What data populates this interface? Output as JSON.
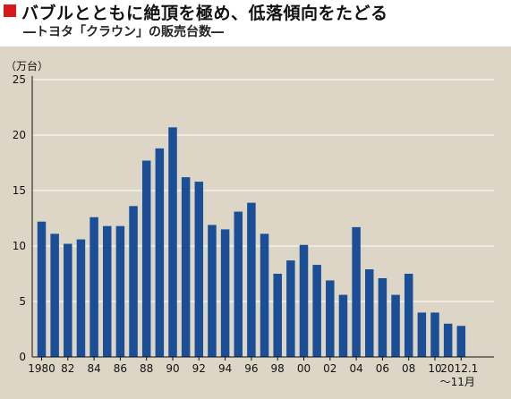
{
  "header": {
    "title": "バブルとともに絶頂を極め、低落傾向をたどる",
    "subtitle": "―トヨタ「クラウン」の販売台数―"
  },
  "chart_data": {
    "type": "bar",
    "unit_label": "（万台）",
    "bar_color": "#1a4e96",
    "categories": [
      "1980",
      "1981",
      "1982",
      "1983",
      "1984",
      "1985",
      "1986",
      "1987",
      "1988",
      "1989",
      "1990",
      "1991",
      "1992",
      "1993",
      "1994",
      "1995",
      "1996",
      "1997",
      "1998",
      "1999",
      "2000",
      "2001",
      "2002",
      "2003",
      "2004",
      "2005",
      "2006",
      "2007",
      "2008",
      "2009",
      "2010",
      "2011",
      "2012.1～11月"
    ],
    "values": [
      12.2,
      11.1,
      10.2,
      10.6,
      12.6,
      11.8,
      11.8,
      13.6,
      17.7,
      18.8,
      20.7,
      16.2,
      15.8,
      11.9,
      11.5,
      13.1,
      13.9,
      11.1,
      7.5,
      8.7,
      10.1,
      8.3,
      6.9,
      5.6,
      11.7,
      7.9,
      7.1,
      5.6,
      7.5,
      4.0,
      4.0,
      3.0,
      2.8
    ],
    "x_tick_labels": [
      "1980",
      "82",
      "84",
      "86",
      "88",
      "90",
      "92",
      "94",
      "96",
      "98",
      "00",
      "02",
      "04",
      "06",
      "08",
      "10",
      "2012.1"
    ],
    "x_tick_last_line2": "～11月",
    "y_ticks": [
      "0",
      "5",
      "10",
      "15",
      "20",
      "25"
    ],
    "ylim": [
      0,
      25
    ],
    "grid": true
  }
}
